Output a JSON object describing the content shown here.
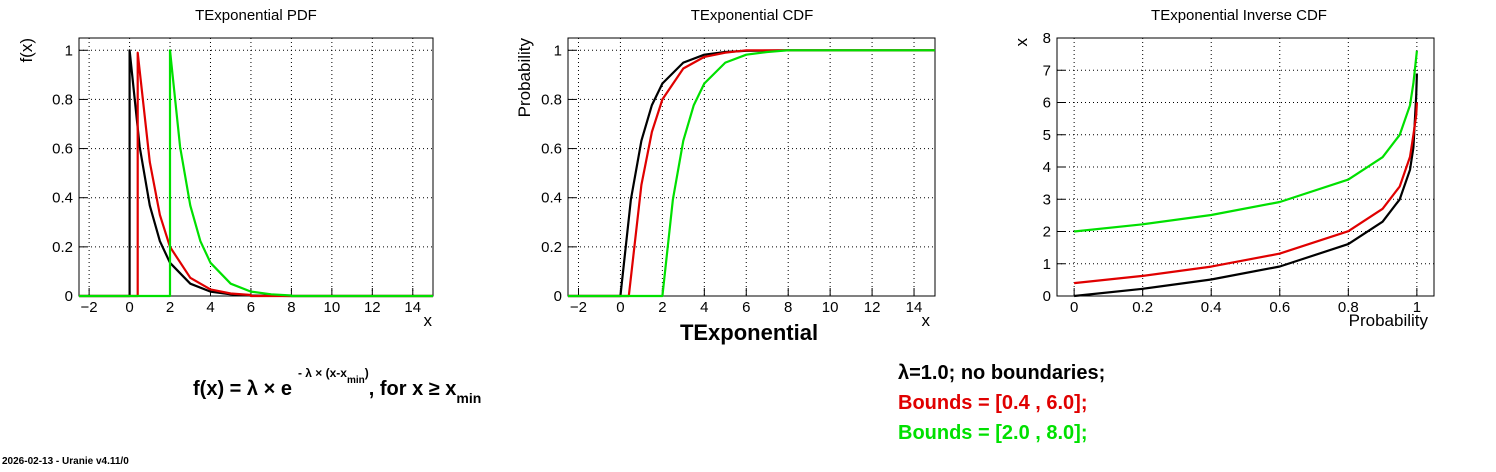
{
  "colors": {
    "black": "#000000",
    "red": "#e00000",
    "green": "#00e000"
  },
  "chart_data": [
    {
      "type": "line",
      "title": "TExponential PDF",
      "xlabel": "x",
      "ylabel": "f(x)",
      "xlim": [
        -2.5,
        15
      ],
      "ylim": [
        0,
        1.05
      ],
      "xticks": [
        "−2",
        "0",
        "2",
        "4",
        "6",
        "8",
        "10",
        "12",
        "14"
      ],
      "yticks": [
        "0",
        "0.2",
        "0.4",
        "0.6",
        "0.8",
        "1"
      ],
      "grid": true,
      "series": [
        {
          "color": "black",
          "points": [
            [
              -2.5,
              0
            ],
            [
              0,
              0
            ],
            [
              0,
              1
            ],
            [
              0.5,
              0.607
            ],
            [
              1,
              0.368
            ],
            [
              1.5,
              0.223
            ],
            [
              2,
              0.135
            ],
            [
              3,
              0.05
            ],
            [
              4,
              0.018
            ],
            [
              5,
              0.007
            ],
            [
              6,
              0.002
            ],
            [
              8,
              0
            ],
            [
              15,
              0
            ]
          ]
        },
        {
          "color": "red",
          "points": [
            [
              -2.5,
              0
            ],
            [
              0.4,
              0
            ],
            [
              0.4,
              0.99
            ],
            [
              1,
              0.545
            ],
            [
              1.5,
              0.33
            ],
            [
              2,
              0.2
            ],
            [
              3,
              0.074
            ],
            [
              4,
              0.027
            ],
            [
              5,
              0.01
            ],
            [
              6,
              0.004
            ],
            [
              6,
              0
            ],
            [
              15,
              0
            ]
          ]
        },
        {
          "color": "green",
          "points": [
            [
              -2.5,
              0
            ],
            [
              2,
              0
            ],
            [
              2,
              1
            ],
            [
              2.5,
              0.607
            ],
            [
              3,
              0.368
            ],
            [
              3.5,
              0.223
            ],
            [
              4,
              0.135
            ],
            [
              5,
              0.05
            ],
            [
              6,
              0.018
            ],
            [
              7,
              0.007
            ],
            [
              8,
              0.002
            ],
            [
              8,
              0
            ],
            [
              15,
              0
            ]
          ]
        }
      ]
    },
    {
      "type": "line",
      "title": "TExponential CDF",
      "xlabel": "x",
      "ylabel": "Probability",
      "xlim": [
        -2.5,
        15
      ],
      "ylim": [
        0,
        1.05
      ],
      "xticks": [
        "−2",
        "0",
        "2",
        "4",
        "6",
        "8",
        "10",
        "12",
        "14"
      ],
      "yticks": [
        "0",
        "0.2",
        "0.4",
        "0.6",
        "0.8",
        "1"
      ],
      "grid": true,
      "series": [
        {
          "color": "black",
          "points": [
            [
              -2.5,
              0
            ],
            [
              0,
              0
            ],
            [
              0.5,
              0.393
            ],
            [
              1,
              0.632
            ],
            [
              1.5,
              0.777
            ],
            [
              2,
              0.865
            ],
            [
              3,
              0.95
            ],
            [
              4,
              0.982
            ],
            [
              5,
              0.993
            ],
            [
              6,
              0.998
            ],
            [
              8,
              1
            ],
            [
              15,
              1
            ]
          ]
        },
        {
          "color": "red",
          "points": [
            [
              -2.5,
              0
            ],
            [
              0.4,
              0
            ],
            [
              1,
              0.452
            ],
            [
              1.5,
              0.668
            ],
            [
              2,
              0.8
            ],
            [
              3,
              0.926
            ],
            [
              4,
              0.973
            ],
            [
              5,
              0.99
            ],
            [
              6,
              1
            ],
            [
              15,
              1
            ]
          ]
        },
        {
          "color": "green",
          "points": [
            [
              -2.5,
              0
            ],
            [
              2,
              0
            ],
            [
              2.5,
              0.393
            ],
            [
              3,
              0.632
            ],
            [
              3.5,
              0.777
            ],
            [
              4,
              0.865
            ],
            [
              5,
              0.95
            ],
            [
              6,
              0.982
            ],
            [
              7,
              0.993
            ],
            [
              8,
              1
            ],
            [
              15,
              1
            ]
          ]
        }
      ]
    },
    {
      "type": "line",
      "title": "TExponential Inverse CDF",
      "xlabel": "Probability",
      "ylabel": "x",
      "xlim": [
        -0.05,
        1.05
      ],
      "ylim": [
        0,
        8
      ],
      "xticks": [
        "0",
        "0.2",
        "0.4",
        "0.6",
        "0.8",
        "1"
      ],
      "yticks": [
        "0",
        "1",
        "2",
        "3",
        "4",
        "5",
        "6",
        "7",
        "8"
      ],
      "grid": true,
      "series": [
        {
          "color": "black",
          "points": [
            [
              0,
              0
            ],
            [
              0.2,
              0.223
            ],
            [
              0.4,
              0.511
            ],
            [
              0.6,
              0.916
            ],
            [
              0.8,
              1.609
            ],
            [
              0.9,
              2.303
            ],
            [
              0.95,
              2.996
            ],
            [
              0.98,
              3.912
            ],
            [
              0.99,
              4.605
            ],
            [
              0.998,
              6.2
            ],
            [
              1,
              6.9
            ]
          ]
        },
        {
          "color": "red",
          "points": [
            [
              0,
              0.4
            ],
            [
              0.2,
              0.623
            ],
            [
              0.4,
              0.911
            ],
            [
              0.6,
              1.316
            ],
            [
              0.8,
              2.009
            ],
            [
              0.9,
              2.703
            ],
            [
              0.95,
              3.396
            ],
            [
              0.98,
              4.312
            ],
            [
              0.99,
              5.0
            ],
            [
              0.998,
              5.6
            ],
            [
              1,
              6.0
            ]
          ]
        },
        {
          "color": "green",
          "points": [
            [
              0,
              2
            ],
            [
              0.2,
              2.223
            ],
            [
              0.4,
              2.511
            ],
            [
              0.6,
              2.916
            ],
            [
              0.8,
              3.609
            ],
            [
              0.9,
              4.303
            ],
            [
              0.95,
              4.996
            ],
            [
              0.98,
              5.912
            ],
            [
              0.99,
              6.6
            ],
            [
              1,
              7.6
            ]
          ]
        }
      ]
    }
  ],
  "main_title": "TExponential",
  "formula": {
    "lhs": "f(x) = λ × e",
    "exponent": "- λ × (x-x",
    "exponent_sub": "min",
    "exponent_close": ")",
    "rhs": ", for x ≥ x",
    "rhs_sub": "min"
  },
  "legend": [
    {
      "text": "λ=1.0;   no boundaries;",
      "color": "black"
    },
    {
      "text": "Bounds = [0.4 , 6.0];",
      "color": "red"
    },
    {
      "text": "Bounds = [2.0 , 8.0];",
      "color": "green"
    }
  ],
  "footer": "2026-02-13 - Uranie v4.11/0"
}
